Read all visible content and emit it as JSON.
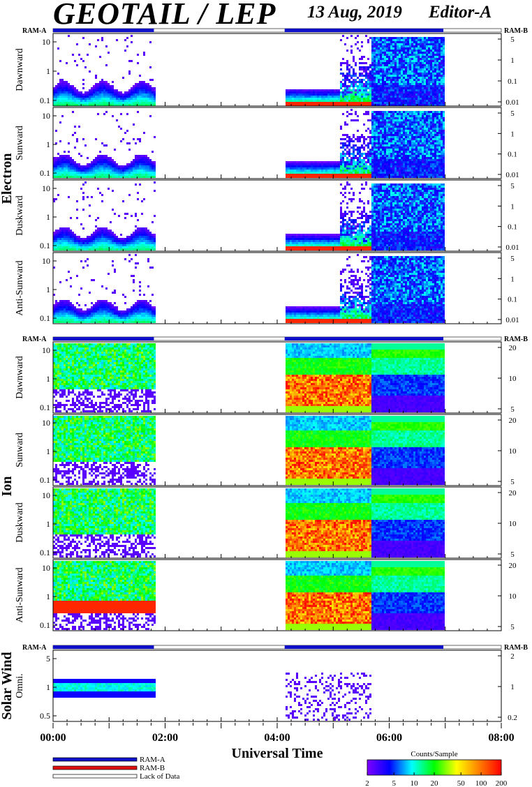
{
  "header": {
    "title": "GEOTAIL / LEP",
    "date": "13 Aug, 2019",
    "editor": "Editor-A"
  },
  "chart_data": {
    "type": "heatmap",
    "xlabel": "Universal Time",
    "xlim": [
      "00:00",
      "08:00"
    ],
    "x_ticks": [
      "00:00",
      "02:00",
      "04:00",
      "06:00",
      "08:00"
    ],
    "data_coverage": [
      {
        "from": "00:00",
        "to": "01:48"
      },
      {
        "from": "04:08",
        "to": "06:58"
      }
    ],
    "ram_label_left": "RAM-A",
    "ram_label_right": "RAM-B",
    "groups": [
      {
        "name": "Electron",
        "panels": [
          {
            "label": "Dawnward",
            "y_ticks": [
              "10",
              "1",
              "0.1"
            ],
            "right_ticks": [
              "5",
              "1",
              "0.1",
              "0.01"
            ]
          },
          {
            "label": "Sunward",
            "y_ticks": [
              "10",
              "1",
              "0.1"
            ],
            "right_ticks": [
              "5",
              "1",
              "0.1",
              "0.01"
            ]
          },
          {
            "label": "Duskward",
            "y_ticks": [
              "10",
              "1",
              "0.1"
            ],
            "right_ticks": [
              "5",
              "1",
              "0.1",
              "0.01"
            ]
          },
          {
            "label": "Anti-Sunward",
            "y_ticks": [
              "10",
              "1",
              "0.1"
            ],
            "right_ticks": [
              "5",
              "1",
              "0.1",
              "0.01"
            ]
          }
        ]
      },
      {
        "name": "Ion",
        "panels": [
          {
            "label": "Dawnward",
            "y_ticks": [
              "10",
              "1",
              "0.1"
            ],
            "right_ticks": [
              "20",
              "10",
              "5"
            ]
          },
          {
            "label": "Sunward",
            "y_ticks": [
              "10",
              "1",
              "0.1"
            ],
            "right_ticks": [
              "20",
              "10",
              "5"
            ]
          },
          {
            "label": "Duskward",
            "y_ticks": [
              "10",
              "1",
              "0.1"
            ],
            "right_ticks": [
              "20",
              "10",
              "5"
            ]
          },
          {
            "label": "Anti-Sunward",
            "y_ticks": [
              "10",
              "1",
              "0.1"
            ],
            "right_ticks": [
              "20",
              "10",
              "5"
            ]
          }
        ]
      },
      {
        "name": "Solar Wind",
        "panels": [
          {
            "label": "Omni.",
            "y_ticks": [
              "5",
              "1",
              "0.5"
            ],
            "right_ticks": [
              "2",
              "1",
              "0.2"
            ]
          }
        ]
      }
    ],
    "legend": [
      {
        "label": "RAM-A",
        "color": "#1010c8"
      },
      {
        "label": "RAM-B",
        "color": "#e01010"
      },
      {
        "label": "Lack of Data",
        "color": "#ffffff"
      }
    ],
    "colorbar": {
      "title": "Counts/Sample",
      "ticks": [
        "2",
        "5",
        "10",
        "20",
        "50",
        "100",
        "200"
      ],
      "colors": [
        "#8000ff",
        "#0000ff",
        "#00ffff",
        "#00ff00",
        "#ffff00",
        "#ff8000",
        "#ff0000"
      ]
    }
  }
}
